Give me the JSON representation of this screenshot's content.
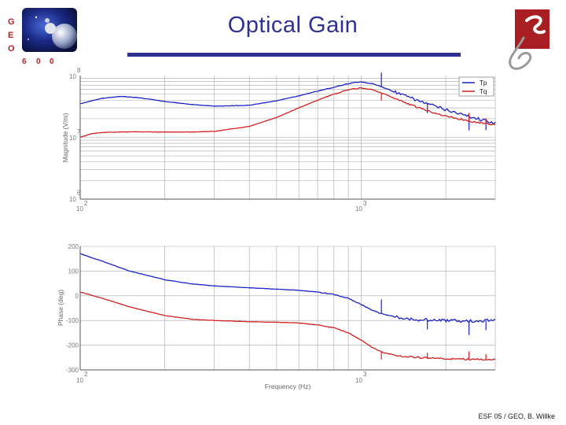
{
  "slide": {
    "title": "Optical Gain",
    "footer": "ESF 05 / GEO, B. Willke",
    "logo_letters": [
      "G",
      "E",
      "O",
      "6",
      "0",
      "0"
    ]
  },
  "colors": {
    "title": "#2e3192",
    "tp": "#1a22c8",
    "tq": "#d42020",
    "grid": "#a8a8a8",
    "logo_red": "#a81e22"
  },
  "chart_data": [
    {
      "type": "line",
      "xscale": "log",
      "yscale": "log",
      "xlim": [
        100,
        3000
      ],
      "ylim": [
        1000000.0,
        100000000.0
      ],
      "xlabel": "",
      "ylabel": "Magnitude (V/m)",
      "x_tick_labels": [
        {
          "base": "10",
          "exp": "2"
        },
        {
          "base": "10",
          "exp": "3"
        }
      ],
      "y_tick_labels": [
        {
          "base": "10",
          "exp": "8"
        },
        {
          "base": "10",
          "exp": "7"
        },
        {
          "base": "10",
          "exp": "6"
        }
      ],
      "grid": true,
      "legend": "top-right",
      "series": [
        {
          "name": "Tp",
          "x": [
            100,
            120,
            140,
            160,
            180,
            200,
            250,
            300,
            400,
            500,
            600,
            700,
            800,
            900,
            1000,
            1100,
            1200,
            1400,
            1600,
            2000,
            2500,
            3000
          ],
          "y": [
            35000000.0,
            43000000.0,
            46000000.0,
            44000000.0,
            41000000.0,
            38000000.0,
            34000000.0,
            32000000.0,
            33000000.0,
            39000000.0,
            47000000.0,
            56000000.0,
            65000000.0,
            74000000.0,
            79000000.0,
            74000000.0,
            64000000.0,
            49000000.0,
            39000000.0,
            28000000.0,
            21000000.0,
            17000000.0
          ]
        },
        {
          "name": "Tq",
          "x": [
            100,
            110,
            120,
            140,
            160,
            200,
            250,
            300,
            400,
            500,
            600,
            700,
            800,
            900,
            1000,
            1100,
            1200,
            1400,
            1600,
            2000,
            2500,
            3000
          ],
          "y": [
            10000000.0,
            11500000.0,
            12000000.0,
            12200000.0,
            12300000.0,
            12200000.0,
            12200000.0,
            12500000.0,
            15000000.0,
            21000000.0,
            30000000.0,
            40000000.0,
            50000000.0,
            59000000.0,
            63000000.0,
            59000000.0,
            51000000.0,
            38000000.0,
            30000000.0,
            22000000.0,
            18000000.0,
            16000000.0
          ]
        }
      ]
    },
    {
      "type": "line",
      "xscale": "log",
      "xlim": [
        100,
        3000
      ],
      "ylim": [
        -300,
        200
      ],
      "xlabel": "Frequency (Hz)",
      "ylabel": "Phase (deg)",
      "x_tick_labels": [
        {
          "base": "10",
          "exp": "2"
        },
        {
          "base": "10",
          "exp": "3"
        }
      ],
      "y_tick_labels": [
        "200",
        "100",
        "0",
        "-100",
        "-200",
        "-300"
      ],
      "y_tick_values": [
        200,
        100,
        0,
        -100,
        -200,
        -300
      ],
      "grid": true,
      "series": [
        {
          "name": "Tp",
          "x": [
            100,
            120,
            150,
            200,
            250,
            300,
            400,
            500,
            600,
            700,
            800,
            900,
            1000,
            1100,
            1200,
            1400,
            1600,
            2000,
            2500,
            3000
          ],
          "y": [
            170,
            140,
            100,
            65,
            48,
            40,
            32,
            27,
            22,
            15,
            5,
            -10,
            -35,
            -60,
            -75,
            -90,
            -97,
            -100,
            -102,
            -100
          ]
        },
        {
          "name": "Tq",
          "x": [
            100,
            120,
            150,
            200,
            250,
            300,
            400,
            500,
            600,
            700,
            800,
            900,
            1000,
            1100,
            1200,
            1400,
            1600,
            2000,
            2500,
            3000
          ],
          "y": [
            15,
            -10,
            -45,
            -80,
            -95,
            -100,
            -105,
            -107,
            -110,
            -118,
            -130,
            -150,
            -180,
            -210,
            -230,
            -245,
            -250,
            -255,
            -257,
            -258
          ]
        }
      ]
    }
  ]
}
